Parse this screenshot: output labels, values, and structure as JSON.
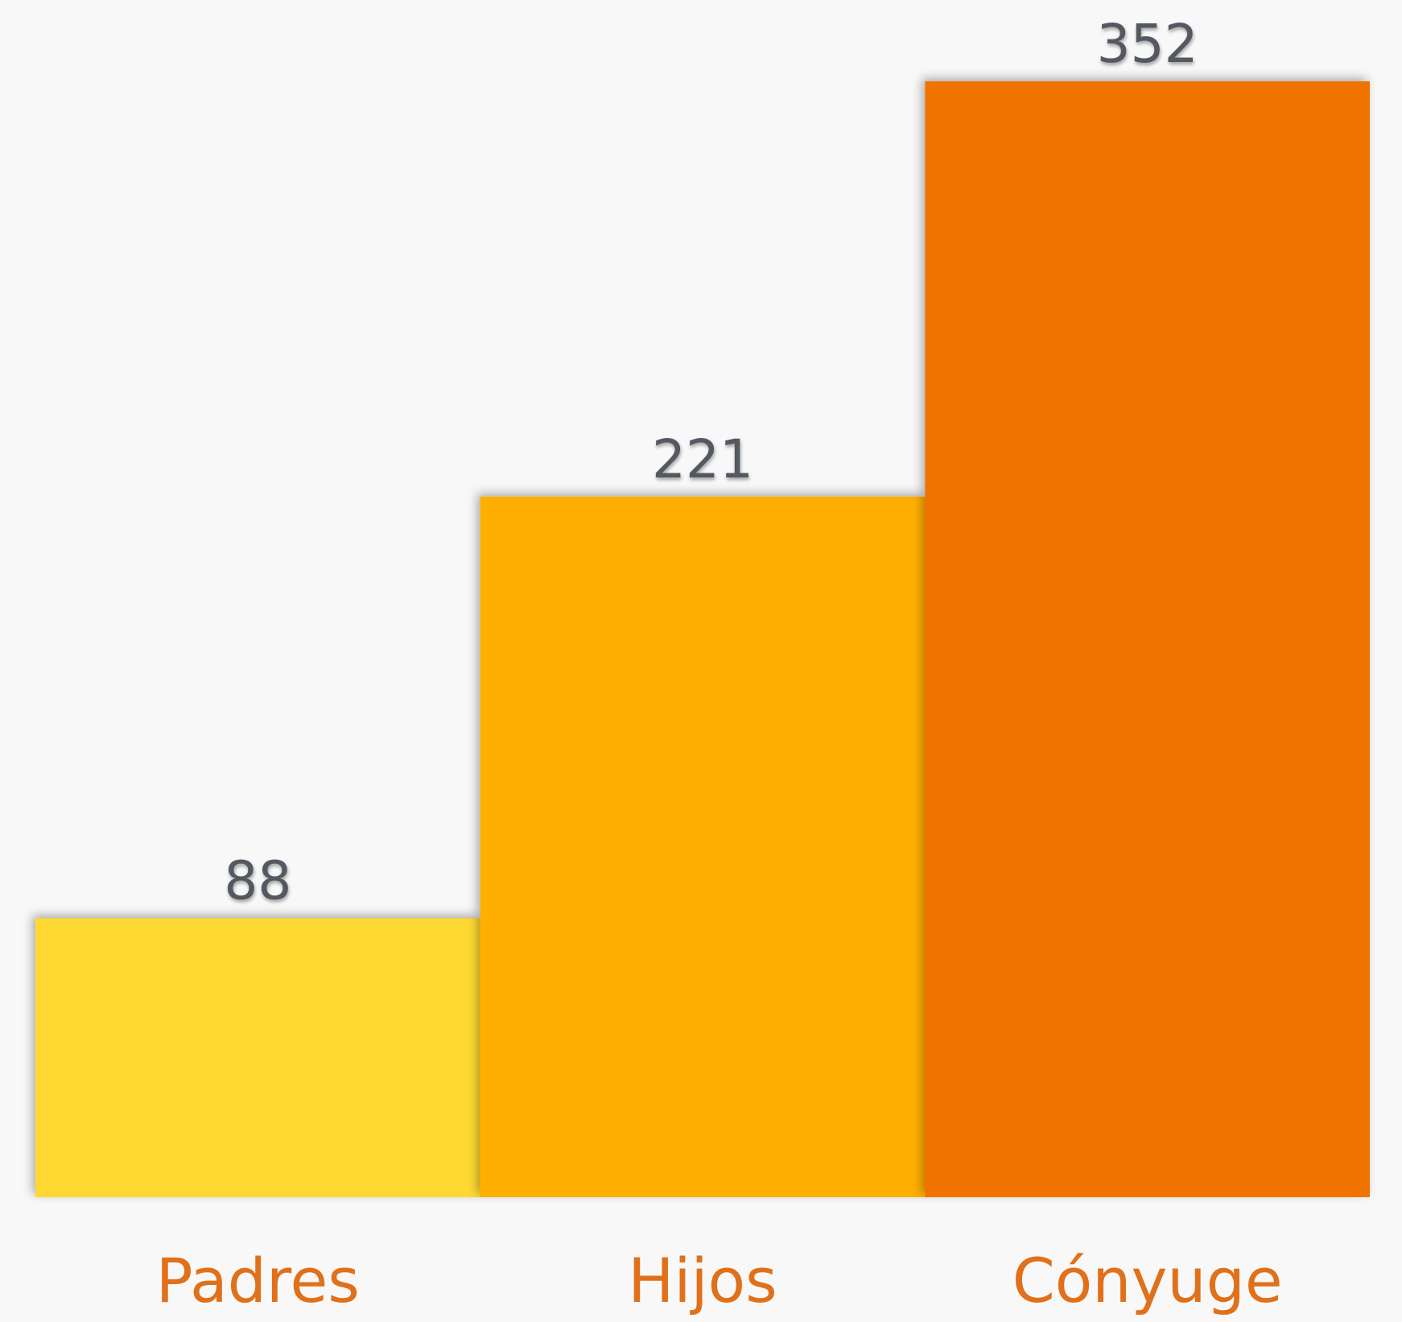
{
  "chart_data": {
    "type": "bar",
    "categories": [
      "Padres",
      "Hijos",
      "Cónyuge"
    ],
    "values": [
      88,
      221,
      352
    ],
    "colors": [
      "#ffd932",
      "#ffaf00",
      "#f07300"
    ]
  }
}
